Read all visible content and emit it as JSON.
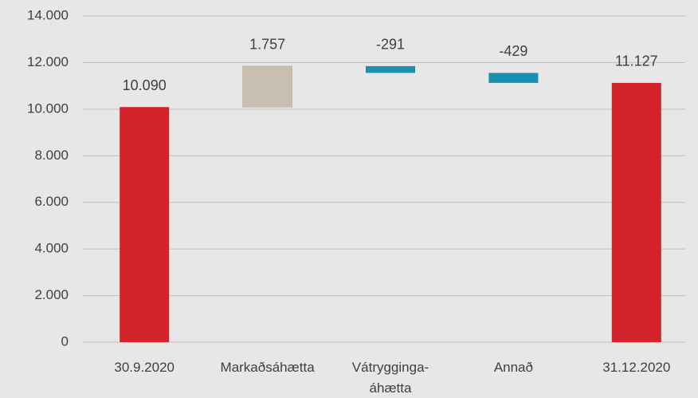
{
  "chart_data": {
    "type": "waterfall",
    "categories": [
      "30.9.2020",
      "Markaðsáhætta",
      "Vátrygginga-\náhætta",
      "Annað",
      "31.12.2020"
    ],
    "values": [
      10090,
      1757,
      -291,
      -429,
      11127
    ],
    "value_labels": [
      "10.090",
      "1.757",
      "-291",
      "-429",
      "11.127"
    ],
    "measure": [
      "total",
      "relative",
      "relative",
      "relative",
      "total"
    ],
    "colors": {
      "total": "#d2232a",
      "increase": "#c9bfb1",
      "decrease": "#1b8fae"
    },
    "ylim": [
      0,
      14000
    ],
    "yticks": [
      0,
      {
        "value": 2000,
        "label": "2.000"
      },
      {
        "value": 4000,
        "label": "4.000"
      },
      {
        "value": 6000,
        "label": "6.000"
      },
      {
        "value": 8000,
        "label": "8.000"
      },
      {
        "value": 10000,
        "label": "10.000"
      },
      {
        "value": 12000,
        "label": "12.000"
      },
      {
        "value": 14000,
        "label": "14.000"
      }
    ],
    "grid": true
  }
}
